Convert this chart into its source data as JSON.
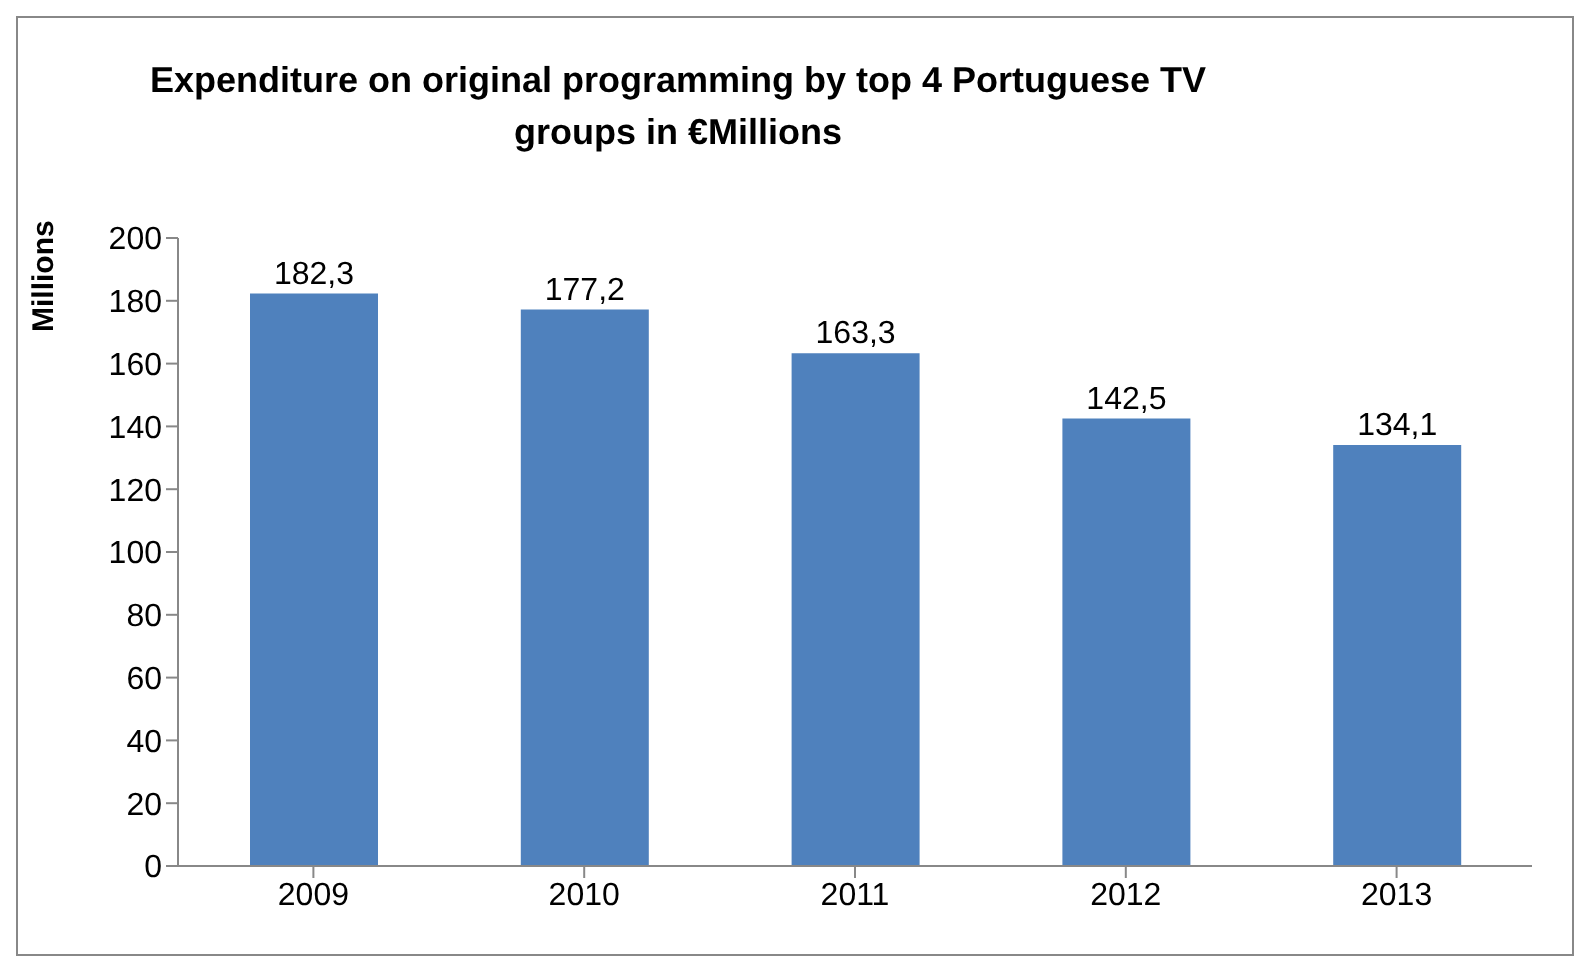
{
  "chart_data": {
    "type": "bar",
    "title": "Expenditure on original programming by top 4 Portuguese TV groups in €Millions",
    "ylabel": "Millions",
    "categories": [
      "2009",
      "2010",
      "2011",
      "2012",
      "2013"
    ],
    "values": [
      182.3,
      177.2,
      163.3,
      142.5,
      134.1
    ],
    "value_labels": [
      "182,3",
      "177,2",
      "163,3",
      "142,5",
      "134,1"
    ],
    "color": "#4f81bd",
    "ylim": [
      0,
      200
    ],
    "yticks": [
      0,
      20,
      40,
      60,
      80,
      100,
      120,
      140,
      160,
      180,
      200
    ],
    "grid": false,
    "legend": false
  }
}
